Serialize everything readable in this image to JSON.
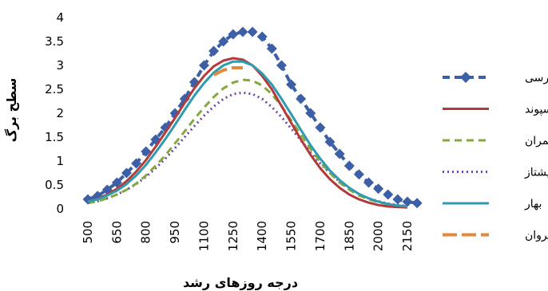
{
  "chart_data": {
    "type": "line",
    "xlabel": "درجه روزهای رشد",
    "ylabel": "سطح برگ",
    "xlim": [
      500,
      2150
    ],
    "ylim": [
      0,
      4
    ],
    "x_ticks": [
      500,
      650,
      800,
      950,
      1100,
      1250,
      1400,
      1550,
      1700,
      1850,
      2000,
      2150
    ],
    "y_ticks": [
      0,
      0.5,
      1,
      1.5,
      2,
      2.5,
      3,
      3.5,
      4
    ],
    "grid": false,
    "legend_position": "right",
    "series": [
      {
        "name": "پارسی",
        "color": "#3D5FA6",
        "style": "dashed-diamond",
        "points": [
          [
            500,
            0.2
          ],
          [
            550,
            0.27
          ],
          [
            600,
            0.4
          ],
          [
            650,
            0.55
          ],
          [
            700,
            0.75
          ],
          [
            750,
            0.95
          ],
          [
            800,
            1.2
          ],
          [
            850,
            1.45
          ],
          [
            900,
            1.7
          ],
          [
            950,
            2.0
          ],
          [
            1000,
            2.3
          ],
          [
            1050,
            2.65
          ],
          [
            1100,
            3.0
          ],
          [
            1150,
            3.3
          ],
          [
            1200,
            3.5
          ],
          [
            1250,
            3.65
          ],
          [
            1300,
            3.7
          ],
          [
            1350,
            3.7
          ],
          [
            1400,
            3.6
          ],
          [
            1450,
            3.35
          ],
          [
            1500,
            3.0
          ],
          [
            1550,
            2.6
          ],
          [
            1600,
            2.3
          ],
          [
            1650,
            2.0
          ],
          [
            1700,
            1.7
          ],
          [
            1750,
            1.4
          ],
          [
            1800,
            1.15
          ],
          [
            1850,
            0.9
          ],
          [
            1900,
            0.72
          ],
          [
            1950,
            0.55
          ],
          [
            2000,
            0.42
          ],
          [
            2050,
            0.3
          ],
          [
            2100,
            0.2
          ],
          [
            2150,
            0.15
          ],
          [
            2200,
            0.12
          ]
        ]
      },
      {
        "name": "سپوند",
        "color": "#B43A3A",
        "style": "solid",
        "points": [
          [
            500,
            0.15
          ],
          [
            550,
            0.21
          ],
          [
            600,
            0.3
          ],
          [
            650,
            0.42
          ],
          [
            700,
            0.58
          ],
          [
            750,
            0.78
          ],
          [
            800,
            1.02
          ],
          [
            850,
            1.3
          ],
          [
            900,
            1.6
          ],
          [
            950,
            1.9
          ],
          [
            1000,
            2.22
          ],
          [
            1050,
            2.52
          ],
          [
            1100,
            2.78
          ],
          [
            1150,
            2.98
          ],
          [
            1200,
            3.1
          ],
          [
            1250,
            3.15
          ],
          [
            1300,
            3.12
          ],
          [
            1350,
            3.0
          ],
          [
            1400,
            2.78
          ],
          [
            1450,
            2.5
          ],
          [
            1500,
            2.15
          ],
          [
            1550,
            1.8
          ],
          [
            1600,
            1.45
          ],
          [
            1650,
            1.13
          ],
          [
            1700,
            0.85
          ],
          [
            1750,
            0.62
          ],
          [
            1800,
            0.44
          ],
          [
            1850,
            0.3
          ],
          [
            1900,
            0.2
          ],
          [
            1950,
            0.13
          ],
          [
            2000,
            0.08
          ],
          [
            2050,
            0.05
          ],
          [
            2100,
            0.04
          ],
          [
            2150,
            0.03
          ]
        ]
      },
      {
        "name": "چمران",
        "color": "#86A83E",
        "style": "dashed",
        "points": [
          [
            500,
            0.12
          ],
          [
            550,
            0.16
          ],
          [
            600,
            0.22
          ],
          [
            650,
            0.3
          ],
          [
            700,
            0.4
          ],
          [
            750,
            0.53
          ],
          [
            800,
            0.7
          ],
          [
            850,
            0.9
          ],
          [
            900,
            1.12
          ],
          [
            950,
            1.37
          ],
          [
            1000,
            1.62
          ],
          [
            1050,
            1.88
          ],
          [
            1100,
            2.12
          ],
          [
            1150,
            2.34
          ],
          [
            1200,
            2.52
          ],
          [
            1250,
            2.64
          ],
          [
            1300,
            2.7
          ],
          [
            1350,
            2.68
          ],
          [
            1400,
            2.58
          ],
          [
            1450,
            2.4
          ],
          [
            1500,
            2.15
          ],
          [
            1550,
            1.85
          ],
          [
            1600,
            1.55
          ],
          [
            1650,
            1.25
          ],
          [
            1700,
            0.98
          ],
          [
            1750,
            0.75
          ],
          [
            1800,
            0.55
          ],
          [
            1850,
            0.4
          ],
          [
            1900,
            0.28
          ],
          [
            1950,
            0.2
          ],
          [
            2000,
            0.14
          ],
          [
            2050,
            0.1
          ],
          [
            2100,
            0.07
          ],
          [
            2150,
            0.05
          ]
        ]
      },
      {
        "name": "پیشتاز",
        "color": "#6B4C9A",
        "style": "dotted",
        "points": [
          [
            500,
            0.12
          ],
          [
            550,
            0.16
          ],
          [
            600,
            0.22
          ],
          [
            650,
            0.3
          ],
          [
            700,
            0.4
          ],
          [
            750,
            0.52
          ],
          [
            800,
            0.67
          ],
          [
            850,
            0.85
          ],
          [
            900,
            1.05
          ],
          [
            950,
            1.27
          ],
          [
            1000,
            1.5
          ],
          [
            1050,
            1.73
          ],
          [
            1100,
            1.95
          ],
          [
            1150,
            2.14
          ],
          [
            1200,
            2.3
          ],
          [
            1250,
            2.4
          ],
          [
            1300,
            2.43
          ],
          [
            1350,
            2.4
          ],
          [
            1400,
            2.3
          ],
          [
            1450,
            2.13
          ],
          [
            1500,
            1.92
          ],
          [
            1550,
            1.68
          ],
          [
            1600,
            1.43
          ],
          [
            1650,
            1.18
          ],
          [
            1700,
            0.95
          ],
          [
            1750,
            0.75
          ],
          [
            1800,
            0.57
          ],
          [
            1850,
            0.43
          ],
          [
            1900,
            0.31
          ],
          [
            1950,
            0.22
          ],
          [
            2000,
            0.16
          ],
          [
            2050,
            0.11
          ],
          [
            2100,
            0.08
          ],
          [
            2150,
            0.06
          ]
        ]
      },
      {
        "name": "بهار",
        "color": "#2F9BB0",
        "style": "solid",
        "points": [
          [
            500,
            0.15
          ],
          [
            550,
            0.2
          ],
          [
            600,
            0.28
          ],
          [
            650,
            0.38
          ],
          [
            700,
            0.52
          ],
          [
            750,
            0.7
          ],
          [
            800,
            0.92
          ],
          [
            850,
            1.18
          ],
          [
            900,
            1.46
          ],
          [
            950,
            1.76
          ],
          [
            1000,
            2.07
          ],
          [
            1050,
            2.37
          ],
          [
            1100,
            2.63
          ],
          [
            1150,
            2.85
          ],
          [
            1200,
            3.0
          ],
          [
            1250,
            3.08
          ],
          [
            1300,
            3.08
          ],
          [
            1350,
            3.0
          ],
          [
            1400,
            2.83
          ],
          [
            1450,
            2.6
          ],
          [
            1500,
            2.3
          ],
          [
            1550,
            1.98
          ],
          [
            1600,
            1.65
          ],
          [
            1650,
            1.33
          ],
          [
            1700,
            1.05
          ],
          [
            1750,
            0.8
          ],
          [
            1800,
            0.6
          ],
          [
            1850,
            0.44
          ],
          [
            1900,
            0.31
          ],
          [
            1950,
            0.22
          ],
          [
            2000,
            0.15
          ],
          [
            2050,
            0.1
          ],
          [
            2100,
            0.07
          ],
          [
            2150,
            0.05
          ]
        ]
      },
      {
        "name": "سیروان",
        "color": "#E08A3C",
        "style": "long-dash",
        "points": [
          [
            1150,
            2.8
          ],
          [
            1200,
            2.9
          ],
          [
            1250,
            2.95
          ],
          [
            1300,
            2.95
          ]
        ]
      }
    ]
  }
}
